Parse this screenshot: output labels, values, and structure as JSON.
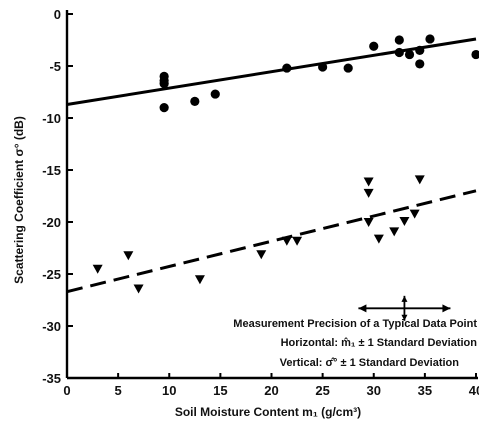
{
  "chart_data": {
    "type": "scatter",
    "xlabel": "Soil Moisture Content m₁ (g/cm³)",
    "ylabel": "Scattering Coefficient σ° (dB)",
    "xlim": [
      0,
      40
    ],
    "ylim": [
      -35,
      0
    ],
    "x_ticks": [
      0,
      5,
      10,
      15,
      20,
      25,
      30,
      35,
      40
    ],
    "y_ticks": [
      0,
      -5,
      -10,
      -15,
      -20,
      -25,
      -30,
      -35
    ],
    "x_tick_labels": [
      "0",
      "5",
      "10",
      "15",
      "20",
      "25",
      "30",
      "35",
      "40"
    ],
    "y_tick_labels": [
      "0",
      "-5",
      "-10",
      "-15",
      "-20",
      "-25",
      "-30",
      "-35"
    ],
    "grid": false,
    "series": [
      {
        "marker": "circle",
        "line_style": "solid",
        "points": [
          {
            "x": 9.5,
            "y": -6.0
          },
          {
            "x": 9.5,
            "y": -6.4
          },
          {
            "x": 9.5,
            "y": -6.7
          },
          {
            "x": 9.5,
            "y": -9.0
          },
          {
            "x": 12.5,
            "y": -8.4
          },
          {
            "x": 14.5,
            "y": -7.7
          },
          {
            "x": 21.5,
            "y": -5.2
          },
          {
            "x": 25.0,
            "y": -5.1
          },
          {
            "x": 27.5,
            "y": -5.2
          },
          {
            "x": 30.0,
            "y": -3.1
          },
          {
            "x": 32.5,
            "y": -2.5
          },
          {
            "x": 32.5,
            "y": -3.7
          },
          {
            "x": 33.5,
            "y": -3.9
          },
          {
            "x": 34.5,
            "y": -4.8
          },
          {
            "x": 34.5,
            "y": -3.5
          },
          {
            "x": 35.5,
            "y": -2.4
          },
          {
            "x": 40.0,
            "y": -3.9
          }
        ],
        "fit_line": {
          "x": [
            0,
            40
          ],
          "y": [
            -8.7,
            -2.4
          ]
        }
      },
      {
        "marker": "triangle-down",
        "line_style": "dashed",
        "points": [
          {
            "x": 3.0,
            "y": -24.5
          },
          {
            "x": 6.0,
            "y": -23.2
          },
          {
            "x": 7.0,
            "y": -26.4
          },
          {
            "x": 13.0,
            "y": -25.5
          },
          {
            "x": 19.0,
            "y": -23.1
          },
          {
            "x": 21.5,
            "y": -21.8
          },
          {
            "x": 22.5,
            "y": -21.8
          },
          {
            "x": 29.5,
            "y": -16.1
          },
          {
            "x": 29.5,
            "y": -17.2
          },
          {
            "x": 29.5,
            "y": -20.0
          },
          {
            "x": 30.5,
            "y": -21.6
          },
          {
            "x": 32.0,
            "y": -20.9
          },
          {
            "x": 33.0,
            "y": -19.9
          },
          {
            "x": 34.0,
            "y": -19.2
          },
          {
            "x": 34.5,
            "y": -15.9
          }
        ],
        "fit_line": {
          "x": [
            0,
            40
          ],
          "y": [
            -26.7,
            -17.0
          ]
        }
      }
    ],
    "error_bar_example": {
      "x": 33.0,
      "y": -28.3,
      "x_minus": 4.5,
      "x_plus": 4.5,
      "y_minus": 1.2,
      "y_plus": 1.2
    },
    "annotation": {
      "title": "Measurement Precision of a Typical Data Point",
      "line1": "Horizontal:  m̂₁ ± 1 Standard Deviation",
      "line2": "Vertical:  σ̂° ± 1 Standard Deviation"
    }
  }
}
